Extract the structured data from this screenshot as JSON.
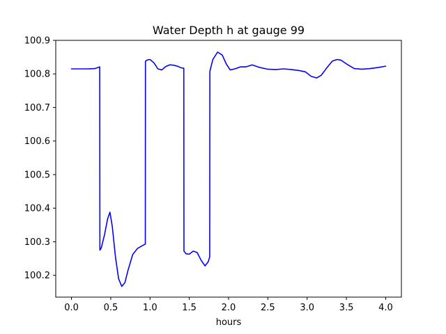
{
  "chart_data": {
    "type": "line",
    "title": "Water Depth h at gauge 99",
    "xlabel": "hours",
    "ylabel": "",
    "xlim": [
      -0.2,
      4.2
    ],
    "ylim": [
      100.135,
      100.9
    ],
    "grid": false,
    "legend": "none",
    "x_ticks": [
      0.0,
      0.5,
      1.0,
      1.5,
      2.0,
      2.5,
      3.0,
      3.5,
      4.0
    ],
    "x_tick_labels": [
      "0.0",
      "0.5",
      "1.0",
      "1.5",
      "2.0",
      "2.5",
      "3.0",
      "3.5",
      "4.0"
    ],
    "y_ticks": [
      100.2,
      100.3,
      100.4,
      100.5,
      100.6,
      100.7,
      100.8,
      100.9
    ],
    "y_tick_labels": [
      "100.2",
      "100.3",
      "100.4",
      "100.5",
      "100.6",
      "100.7",
      "100.8",
      "100.9"
    ],
    "series": [
      {
        "color": "#0000ff",
        "x": [
          0.0,
          0.1,
          0.2,
          0.3,
          0.36,
          0.362,
          0.38,
          0.42,
          0.46,
          0.49,
          0.52,
          0.56,
          0.6,
          0.64,
          0.68,
          0.72,
          0.78,
          0.84,
          0.9,
          0.94,
          0.942,
          0.97,
          1.0,
          1.05,
          1.1,
          1.15,
          1.2,
          1.25,
          1.3,
          1.35,
          1.4,
          1.43,
          1.432,
          1.46,
          1.5,
          1.55,
          1.6,
          1.65,
          1.7,
          1.74,
          1.76,
          1.762,
          1.8,
          1.86,
          1.92,
          1.97,
          2.02,
          2.08,
          2.15,
          2.22,
          2.3,
          2.4,
          2.5,
          2.6,
          2.7,
          2.8,
          2.9,
          2.98,
          3.05,
          3.12,
          3.18,
          3.25,
          3.32,
          3.38,
          3.43,
          3.5,
          3.6,
          3.7,
          3.8,
          3.9,
          4.0
        ],
        "y": [
          100.815,
          100.815,
          100.815,
          100.816,
          100.821,
          100.275,
          100.282,
          100.32,
          100.368,
          100.388,
          100.345,
          100.255,
          100.19,
          100.167,
          100.178,
          100.215,
          100.262,
          100.28,
          100.288,
          100.293,
          100.838,
          100.842,
          100.843,
          100.833,
          100.815,
          100.812,
          100.822,
          100.827,
          100.826,
          100.823,
          100.818,
          100.817,
          100.272,
          100.264,
          100.263,
          100.272,
          100.268,
          100.245,
          100.228,
          100.24,
          100.255,
          100.808,
          100.843,
          100.865,
          100.856,
          100.83,
          100.812,
          100.815,
          100.821,
          100.821,
          100.827,
          100.819,
          100.814,
          100.813,
          100.815,
          100.813,
          100.81,
          100.806,
          100.793,
          100.788,
          100.796,
          100.818,
          100.838,
          100.843,
          100.841,
          100.83,
          100.816,
          100.814,
          100.816,
          100.819,
          100.823
        ]
      }
    ]
  }
}
